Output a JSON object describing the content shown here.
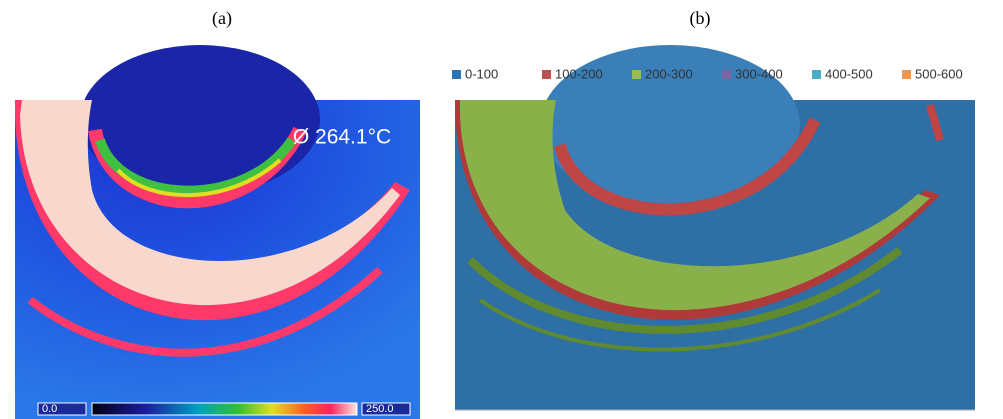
{
  "panels": [
    {
      "label": "(a)",
      "annotation": "Ø 264.1°C",
      "scale_min": "0.0",
      "scale_max": "250.0"
    },
    {
      "label": "(b)",
      "legend": [
        {
          "name": "0-100",
          "color": "#2e75b6"
        },
        {
          "name": "100-200",
          "color": "#c0504d"
        },
        {
          "name": "200-300",
          "color": "#9bbb59"
        },
        {
          "name": "300-400",
          "color": "#8064a2"
        },
        {
          "name": "400-500",
          "color": "#4bacc6"
        },
        {
          "name": "500-600",
          "color": "#f79646"
        }
      ]
    }
  ]
}
